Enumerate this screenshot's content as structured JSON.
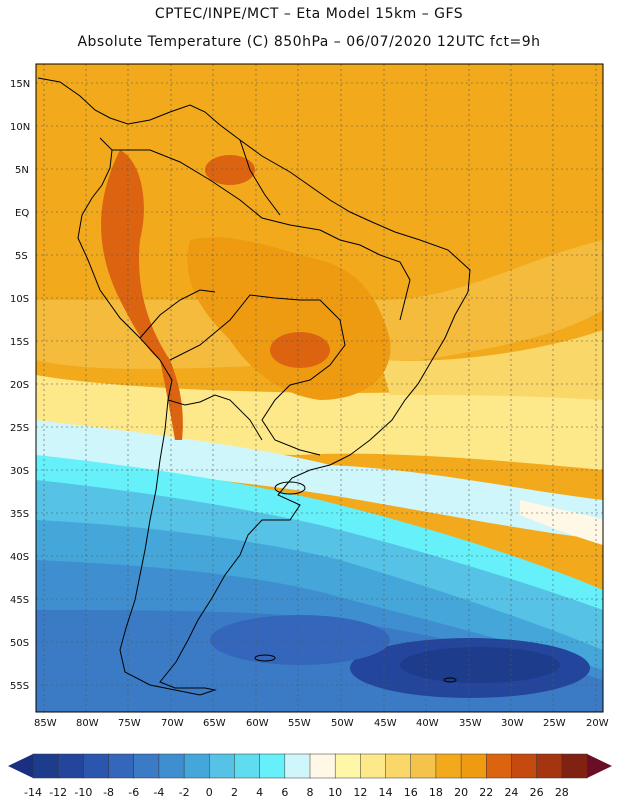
{
  "title_line1": "CPTEC/INPE/MCT –  Eta Model 15km – GFS",
  "title_line2": "Absolute Temperature (C) 850hPa – 06/07/2020 12UTC fct=9h",
  "lat_labels": [
    "15N",
    "10N",
    "5N",
    "EQ",
    "5S",
    "10S",
    "15S",
    "20S",
    "25S",
    "30S",
    "35S",
    "40S",
    "45S",
    "50S",
    "55S"
  ],
  "lon_labels": [
    "85W",
    "80W",
    "75W",
    "70W",
    "65W",
    "60W",
    "55W",
    "50W",
    "45W",
    "40W",
    "35W",
    "30W",
    "25W",
    "20W"
  ],
  "colorbar": {
    "ticks": [
      "-14",
      "-12",
      "-10",
      "-8",
      "-6",
      "-4",
      "-2",
      "0",
      "2",
      "4",
      "6",
      "8",
      "10",
      "12",
      "14",
      "16",
      "18",
      "20",
      "22",
      "24",
      "26",
      "28"
    ],
    "colors": [
      "#1e3c8c",
      "#23459b",
      "#2a56ad",
      "#3467bb",
      "#3b7bc6",
      "#3f8fd0",
      "#45a6da",
      "#55c2e6",
      "#5fdcf0",
      "#66f0fa",
      "#cff7fb",
      "#fff8e6",
      "#fff7a8",
      "#fde98a",
      "#f9d768",
      "#f5c24b",
      "#f2aa1c",
      "#ef9b12",
      "#dc6410",
      "#c44a10",
      "#a53411",
      "#7f2211"
    ],
    "under_color": "#1a2f80",
    "over_color": "#6a0e25"
  }
}
